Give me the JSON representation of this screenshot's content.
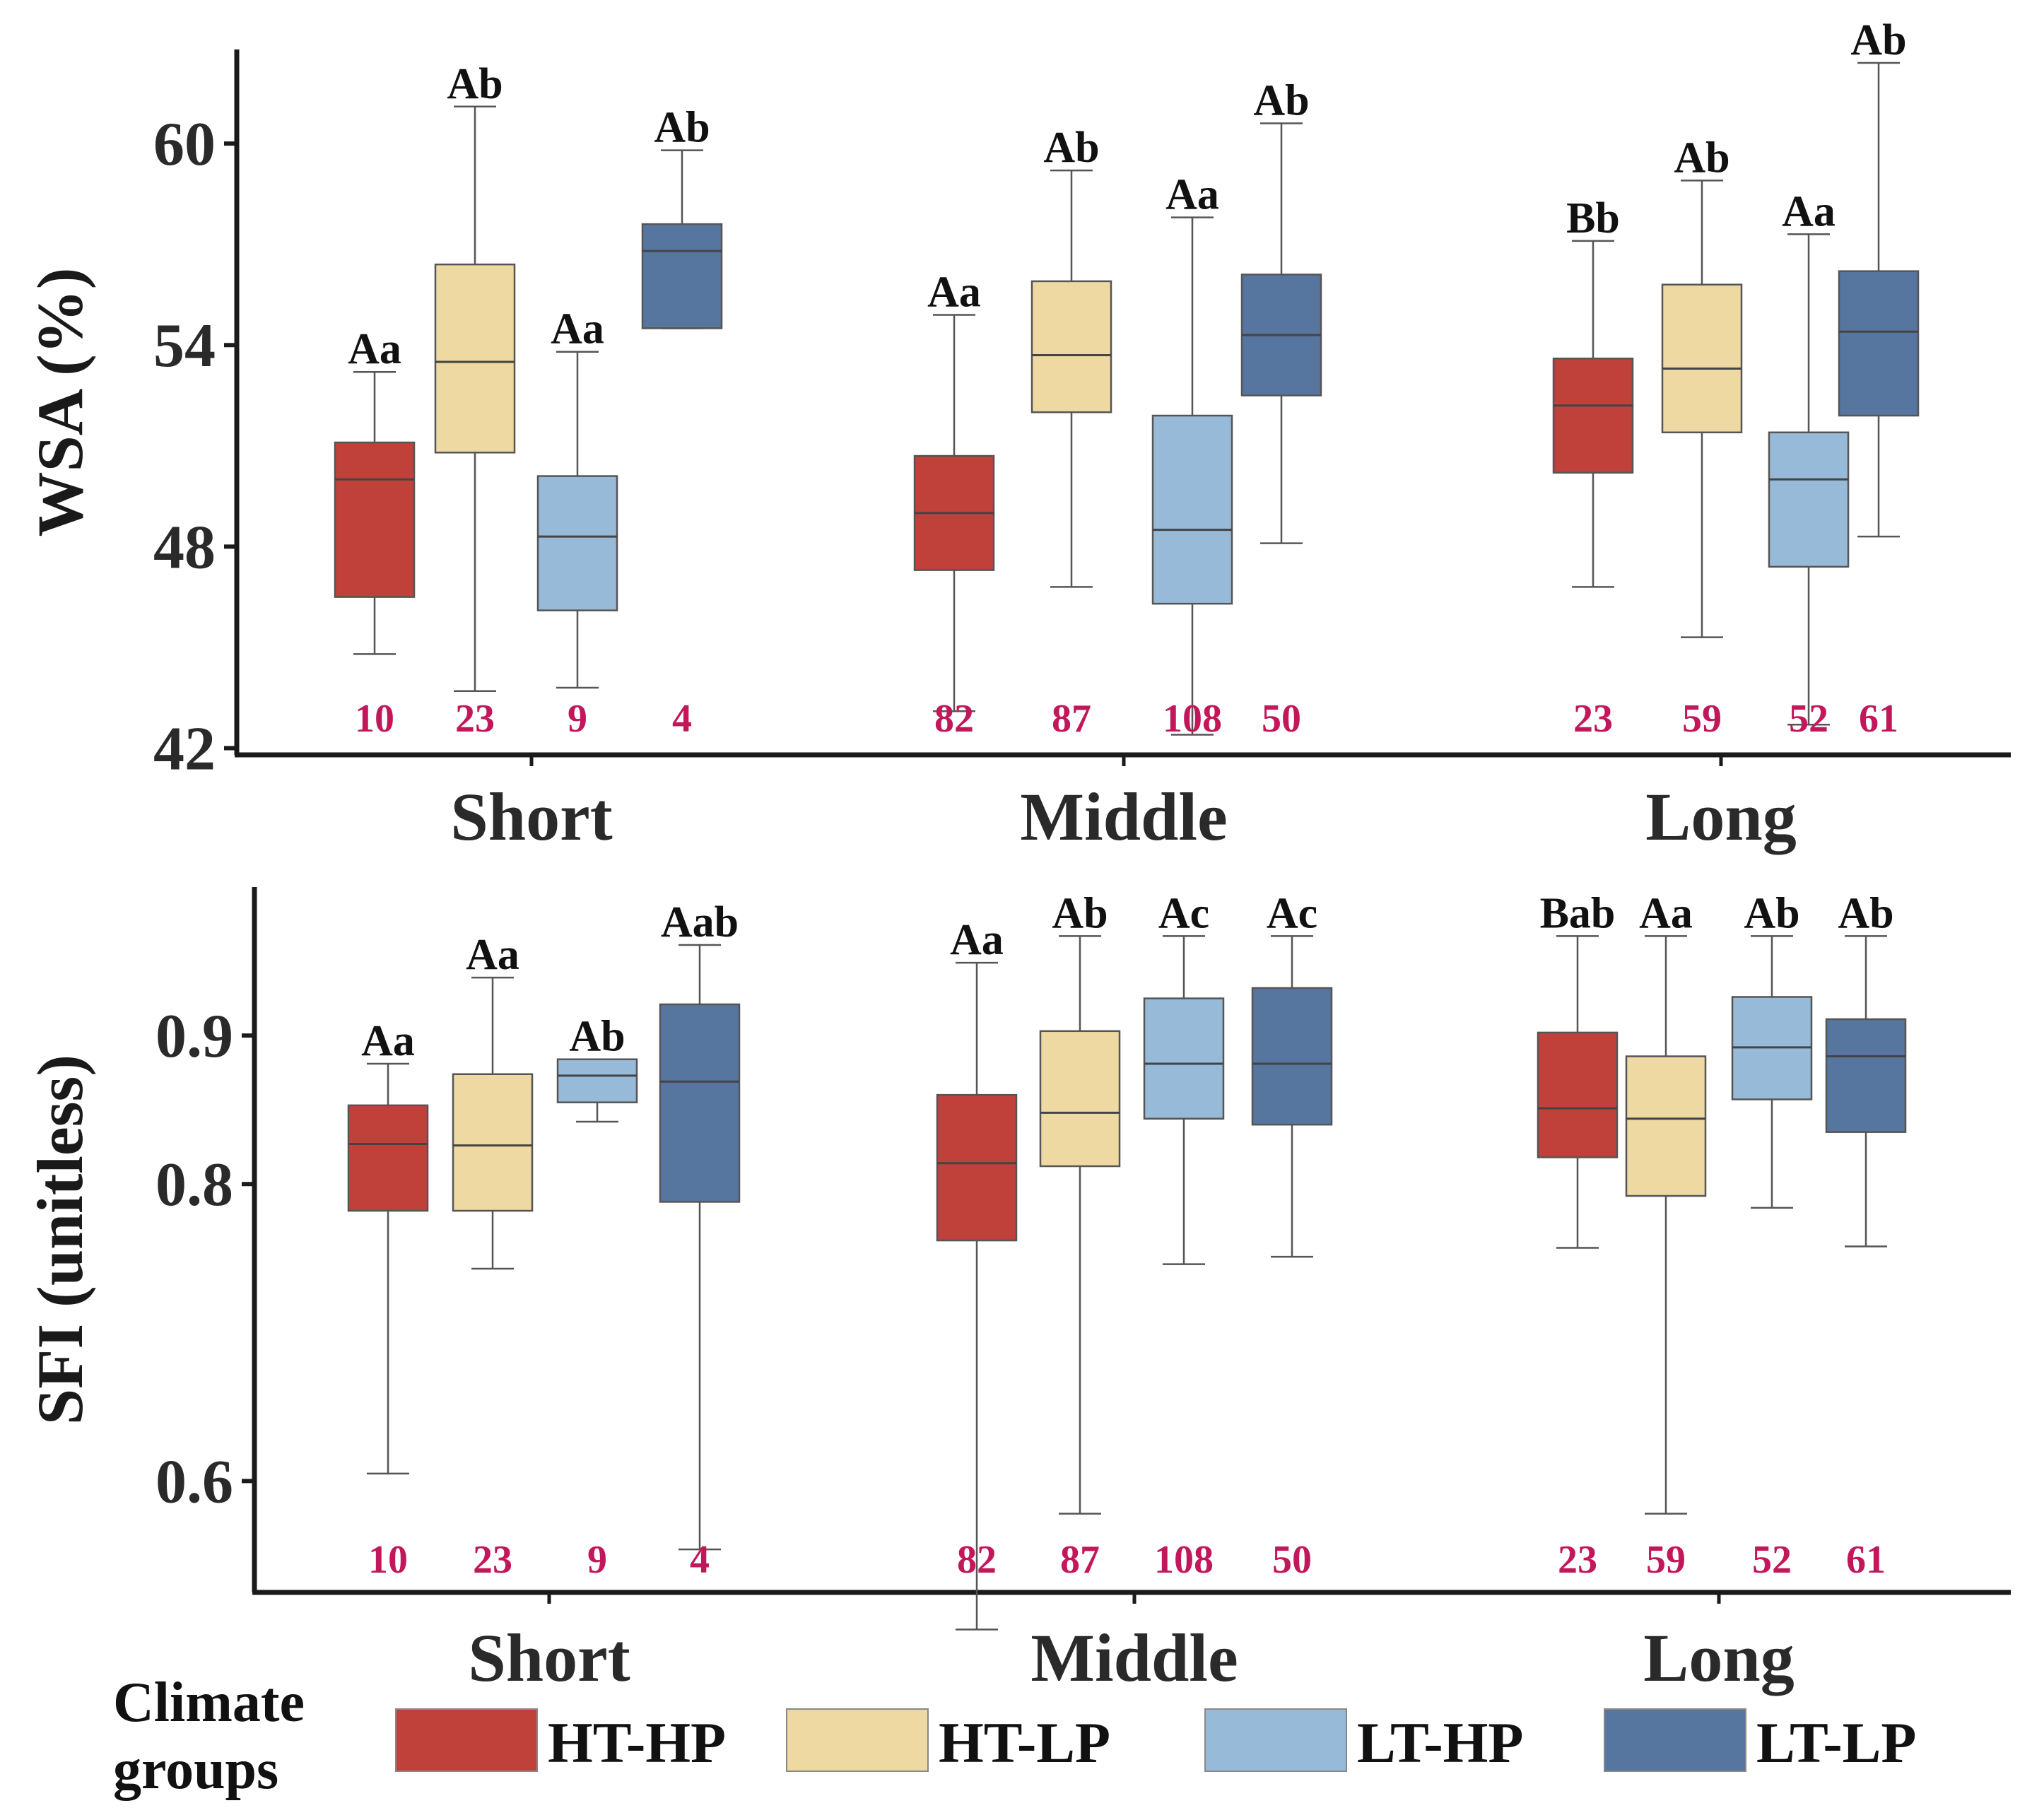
{
  "colors": {
    "HT-HP": "#c0413a",
    "HT-LP": "#efd9a2",
    "LT-HP": "#97bad8",
    "LT-LP": "#56759f",
    "count": "#c2185b",
    "axis": "#1a1a1a"
  },
  "legend": {
    "title_line1": "Climate",
    "title_line2": "groups",
    "items": [
      "HT-HP",
      "HT-LP",
      "LT-HP",
      "LT-LP"
    ]
  },
  "chart_data": [
    {
      "type": "boxplot",
      "ylabel": "WSA (%)",
      "ylim": [
        41.8,
        62.8
      ],
      "yticks": [
        "42",
        "48",
        "54",
        "60"
      ],
      "ytick_values": [
        42,
        48,
        54,
        60
      ],
      "categories": [
        "Short",
        "Middle",
        "Long"
      ],
      "series_names": [
        "HT-HP",
        "HT-LP",
        "LT-HP",
        "LT-LP"
      ],
      "groups": [
        {
          "name": "Short",
          "boxes": [
            {
              "series": "HT-HP",
              "whislo": 44.8,
              "q1": 46.5,
              "med": 50.0,
              "q3": 51.1,
              "whishi": 53.2,
              "sig": "Aa",
              "n": "10"
            },
            {
              "series": "HT-LP",
              "whislo": 43.7,
              "q1": 50.8,
              "med": 53.5,
              "q3": 56.4,
              "whishi": 61.1,
              "sig": "Ab",
              "n": "23"
            },
            {
              "series": "LT-HP",
              "whislo": 43.8,
              "q1": 46.1,
              "med": 48.3,
              "q3": 50.1,
              "whishi": 53.8,
              "sig": "Aa",
              "n": "9"
            },
            {
              "series": "LT-LP",
              "whislo": 54.5,
              "q1": 54.5,
              "med": 56.8,
              "q3": 57.6,
              "whishi": 59.8,
              "sig": "Ab",
              "n": "4"
            }
          ]
        },
        {
          "name": "Middle",
          "boxes": [
            {
              "series": "HT-HP",
              "whislo": 43.1,
              "q1": 47.3,
              "med": 49.0,
              "q3": 50.7,
              "whishi": 54.9,
              "sig": "Aa",
              "n": "82"
            },
            {
              "series": "HT-LP",
              "whislo": 46.8,
              "q1": 52.0,
              "med": 53.7,
              "q3": 55.9,
              "whishi": 59.2,
              "sig": "Ab",
              "n": "87"
            },
            {
              "series": "LT-HP",
              "whislo": 42.4,
              "q1": 46.3,
              "med": 48.5,
              "q3": 51.9,
              "whishi": 57.8,
              "sig": "Aa",
              "n": "108"
            },
            {
              "series": "LT-LP",
              "whislo": 48.1,
              "q1": 52.5,
              "med": 54.3,
              "q3": 56.1,
              "whishi": 60.6,
              "sig": "Ab",
              "n": "50"
            }
          ]
        },
        {
          "name": "Long",
          "boxes": [
            {
              "series": "HT-HP",
              "whislo": 46.8,
              "q1": 50.2,
              "med": 52.2,
              "q3": 53.6,
              "whishi": 57.1,
              "sig": "Bb",
              "n": "23"
            },
            {
              "series": "HT-LP",
              "whislo": 45.3,
              "q1": 51.4,
              "med": 53.3,
              "q3": 55.8,
              "whishi": 58.9,
              "sig": "Ab",
              "n": "59"
            },
            {
              "series": "LT-HP",
              "whislo": 42.7,
              "q1": 47.4,
              "med": 50.0,
              "q3": 51.4,
              "whishi": 57.3,
              "sig": "Aa",
              "n": "52"
            },
            {
              "series": "LT-LP",
              "whislo": 48.3,
              "q1": 51.9,
              "med": 54.4,
              "q3": 56.2,
              "whishi": 62.4,
              "sig": "Ab",
              "n": "61"
            }
          ]
        }
      ]
    },
    {
      "type": "boxplot",
      "ylabel": "SFI (unitless)",
      "ylim": [
        0.525,
        1.0
      ],
      "yticks": [
        "0.6",
        "0.8",
        "0.9"
      ],
      "ytick_values": [
        0.6,
        0.8,
        0.9
      ],
      "categories": [
        "Short",
        "Middle",
        "Long"
      ],
      "series_names": [
        "HT-HP",
        "HT-LP",
        "LT-HP",
        "LT-LP"
      ],
      "groups": [
        {
          "name": "Short",
          "boxes": [
            {
              "series": "HT-HP",
              "whislo": 0.605,
              "q1": 0.782,
              "med": 0.827,
              "q3": 0.853,
              "whishi": 0.881,
              "sig": "Aa",
              "n": "10"
            },
            {
              "series": "HT-LP",
              "whislo": 0.743,
              "q1": 0.782,
              "med": 0.826,
              "q3": 0.874,
              "whishi": 0.939,
              "sig": "Aa",
              "n": "23"
            },
            {
              "series": "LT-HP",
              "whislo": 0.842,
              "q1": 0.855,
              "med": 0.873,
              "q3": 0.884,
              "whishi": 0.884,
              "sig": "Ab",
              "n": "9"
            },
            {
              "series": "LT-LP",
              "whislo": 0.554,
              "q1": 0.788,
              "med": 0.869,
              "q3": 0.921,
              "whishi": 0.961,
              "sig": "Aab",
              "n": "4"
            }
          ]
        },
        {
          "name": "Middle",
          "boxes": [
            {
              "series": "HT-HP",
              "whislo": 0.5,
              "q1": 0.762,
              "med": 0.814,
              "q3": 0.86,
              "whishi": 0.949,
              "sig": "Aa",
              "n": "82"
            },
            {
              "series": "HT-LP",
              "whislo": 0.578,
              "q1": 0.812,
              "med": 0.848,
              "q3": 0.903,
              "whishi": 0.967,
              "sig": "Ab",
              "n": "87"
            },
            {
              "series": "LT-HP",
              "whislo": 0.746,
              "q1": 0.844,
              "med": 0.881,
              "q3": 0.925,
              "whishi": 0.967,
              "sig": "Ac",
              "n": "108"
            },
            {
              "series": "LT-LP",
              "whislo": 0.751,
              "q1": 0.84,
              "med": 0.881,
              "q3": 0.932,
              "whishi": 0.967,
              "sig": "Ac",
              "n": "50"
            }
          ]
        },
        {
          "name": "Long",
          "boxes": [
            {
              "series": "HT-HP",
              "whislo": 0.757,
              "q1": 0.818,
              "med": 0.851,
              "q3": 0.902,
              "whishi": 0.967,
              "sig": "Bab",
              "n": "23"
            },
            {
              "series": "HT-LP",
              "whislo": 0.578,
              "q1": 0.792,
              "med": 0.844,
              "q3": 0.886,
              "whishi": 0.967,
              "sig": "Aa",
              "n": "59"
            },
            {
              "series": "LT-HP",
              "whislo": 0.784,
              "q1": 0.857,
              "med": 0.892,
              "q3": 0.926,
              "whishi": 0.967,
              "sig": "Ab",
              "n": "52"
            },
            {
              "series": "LT-LP",
              "whislo": 0.758,
              "q1": 0.835,
              "med": 0.886,
              "q3": 0.911,
              "whishi": 0.967,
              "sig": "Ab",
              "n": "61"
            }
          ]
        }
      ]
    }
  ]
}
